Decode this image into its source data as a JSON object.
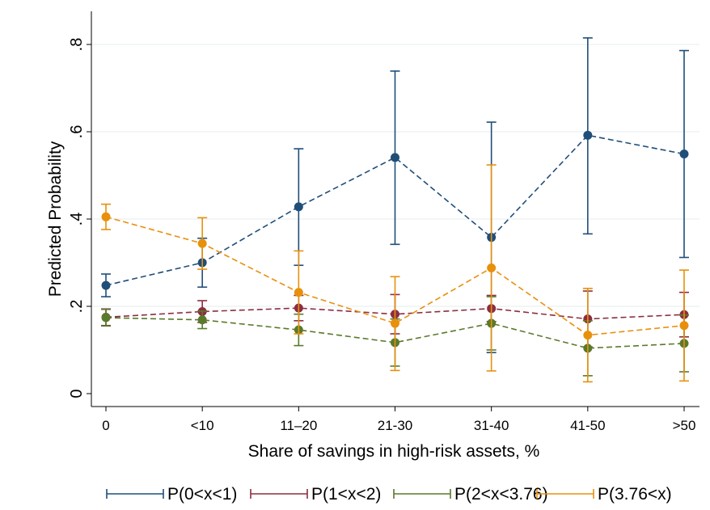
{
  "chart_data": {
    "type": "line",
    "xlabel": "Share of savings in high-risk assets, %",
    "ylabel": "Predicted Probability",
    "categories": [
      "0",
      "<10",
      "11–20",
      "21-30",
      "31-40",
      "41-50",
      ">50"
    ],
    "ylim": [
      0,
      0.8
    ],
    "yticks": [
      {
        "value": 0,
        "label": "0"
      },
      {
        "value": 0.2,
        "label": ".2"
      },
      {
        "value": 0.4,
        "label": ".4"
      },
      {
        "value": 0.6,
        "label": ".6"
      },
      {
        "value": 0.8,
        "label": ".8"
      }
    ],
    "grid": true,
    "legend_position": "bottom",
    "series": [
      {
        "name": "P(0<x<1)",
        "color": "#1f4e79",
        "values": [
          0.248,
          0.3,
          0.428,
          0.541,
          0.358,
          0.592,
          0.549
        ],
        "ci_low": [
          0.222,
          0.244,
          0.294,
          0.342,
          0.094,
          0.366,
          0.312
        ],
        "ci_high": [
          0.274,
          0.356,
          0.561,
          0.739,
          0.622,
          0.815,
          0.786
        ]
      },
      {
        "name": "P(1<x<2)",
        "color": "#8b2e3f",
        "values": [
          0.175,
          0.188,
          0.196,
          0.182,
          0.195,
          0.171,
          0.181
        ],
        "ci_low": [
          0.156,
          0.163,
          0.167,
          0.137,
          0.165,
          0.107,
          0.13
        ],
        "ci_high": [
          0.194,
          0.213,
          0.225,
          0.227,
          0.225,
          0.235,
          0.232
        ]
      },
      {
        "name": "P(2<x<3.76)",
        "color": "#5a7a2b",
        "values": [
          0.174,
          0.169,
          0.146,
          0.117,
          0.161,
          0.104,
          0.115
        ],
        "ci_low": [
          0.155,
          0.149,
          0.11,
          0.063,
          0.1,
          0.041,
          0.05
        ],
        "ci_high": [
          0.193,
          0.189,
          0.182,
          0.171,
          0.222,
          0.167,
          0.18
        ]
      },
      {
        "name": "P(3.76<x)",
        "color": "#e8900c",
        "values": [
          0.405,
          0.344,
          0.232,
          0.161,
          0.288,
          0.134,
          0.156
        ],
        "ci_low": [
          0.376,
          0.285,
          0.137,
          0.053,
          0.052,
          0.027,
          0.029
        ],
        "ci_high": [
          0.434,
          0.403,
          0.327,
          0.268,
          0.524,
          0.241,
          0.283
        ]
      }
    ]
  }
}
